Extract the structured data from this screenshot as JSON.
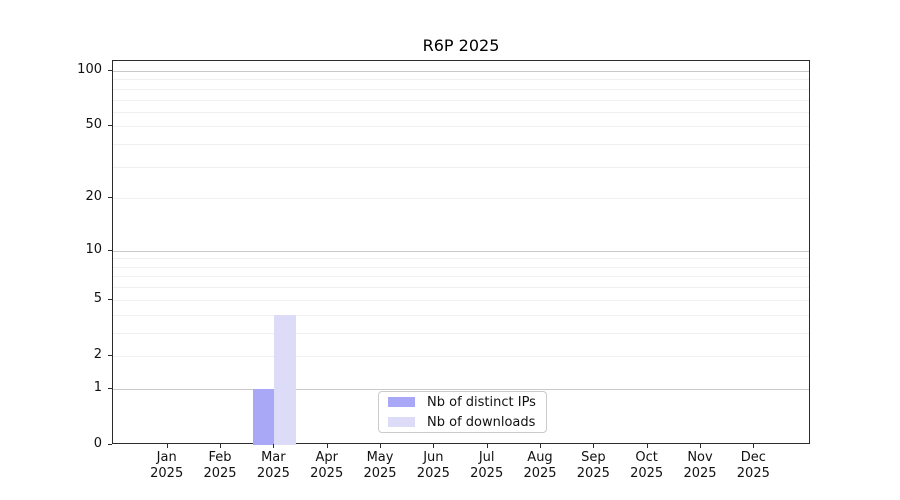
{
  "chart_data": {
    "type": "bar",
    "title": "R6P 2025",
    "categories": [
      "Jan",
      "Feb",
      "Mar",
      "Apr",
      "May",
      "Jun",
      "Jul",
      "Aug",
      "Sep",
      "Oct",
      "Nov",
      "Dec"
    ],
    "year_label": "2025",
    "series": [
      {
        "name": "Nb of distinct IPs",
        "color": "#a8a8f6",
        "values": [
          0,
          0,
          1,
          0,
          0,
          0,
          0,
          0,
          0,
          0,
          0,
          0
        ]
      },
      {
        "name": "Nb of downloads",
        "color": "#dcdcf8",
        "values": [
          0,
          0,
          4,
          0,
          0,
          0,
          0,
          0,
          0,
          0,
          0,
          0
        ]
      }
    ],
    "y_scale": "log1p",
    "y_ticks": [
      0,
      1,
      2,
      5,
      10,
      20,
      50,
      100
    ],
    "y_gridlines_major": [
      1,
      10,
      100
    ],
    "y_gridlines_minor": [
      2,
      3,
      4,
      5,
      6,
      7,
      8,
      9,
      20,
      30,
      40,
      50,
      60,
      70,
      80,
      90
    ],
    "ylim": [
      0,
      113
    ],
    "xlabel": "",
    "ylabel": "",
    "grid": true,
    "legend_position": "lower center"
  },
  "colors": {
    "bar_distinct_ips": "#a8a8f6",
    "bar_downloads": "#dcdcf8",
    "gridline_major": "#c9c9c9",
    "gridline_minor": "#f0f0f0",
    "axis": "#2b2b2b",
    "legend_border": "#cbcbcb"
  }
}
